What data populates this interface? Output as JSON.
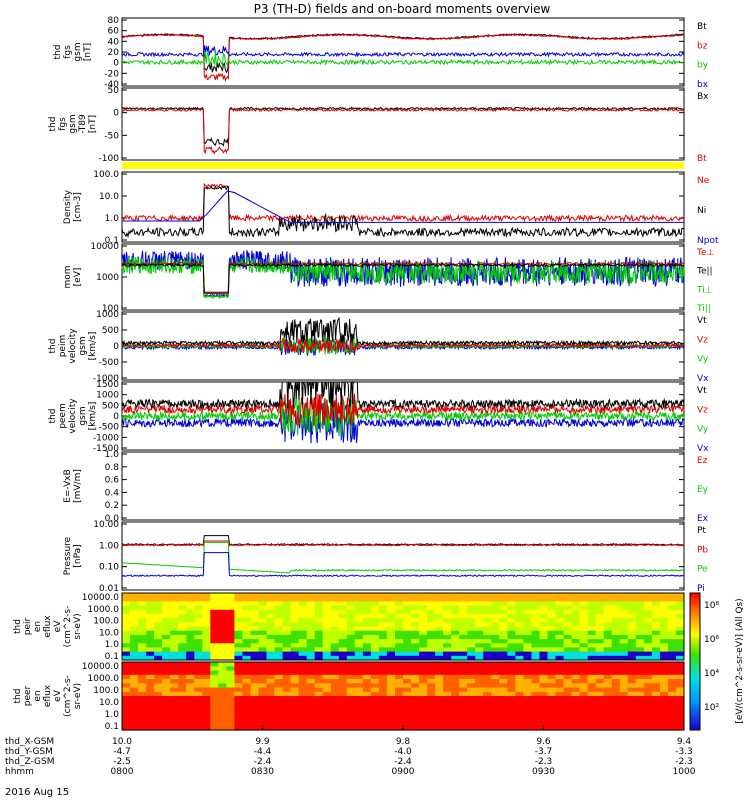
{
  "title": "P3 (TH-D) fields and on-board moments overview",
  "date_label": "2016 Aug 15",
  "chart_data": {
    "type": "line",
    "time_ticks": [
      "0800",
      "0830",
      "0900",
      "0930",
      "1000"
    ],
    "ephemeris": [
      {
        "label": "thd_X-GSM",
        "values": [
          "10.0",
          "9.9",
          "9.8",
          "9.6",
          "9.4"
        ]
      },
      {
        "label": "thd_Y-GSM",
        "values": [
          "-4.7",
          "-4.4",
          "-4.0",
          "-3.7",
          "-3.3"
        ]
      },
      {
        "label": "thd_Z-GSM",
        "values": [
          "-2.5",
          "-2.4",
          "-2.4",
          "-2.3",
          "-2.3"
        ]
      },
      {
        "label": "hhmm",
        "values": [
          "0800",
          "0830",
          "0900",
          "0930",
          "1000"
        ]
      }
    ],
    "panels": [
      {
        "id": "fgs",
        "ylabel": [
          "thd",
          "fgs",
          "gsm",
          "[nT]"
        ],
        "yticks": [
          "80",
          "60",
          "40",
          "20",
          "0",
          "-20",
          "-40"
        ],
        "ymin": -40,
        "ymax": 80,
        "log": false,
        "legend": [
          {
            "name": "Bt",
            "color": "#000000"
          },
          {
            "name": "bz",
            "color": "#e00000"
          },
          {
            "name": "by",
            "color": "#00cc00"
          },
          {
            "name": "bx",
            "color": "#0000dd"
          }
        ]
      },
      {
        "id": "fgs_delta",
        "ylabel": [
          "thd",
          "fgs",
          "gsm",
          "-T89",
          "[nT]"
        ],
        "yticks": [
          "50",
          "0",
          "-50",
          "-100"
        ],
        "ymin": -120,
        "ymax": 50,
        "log": false,
        "legend": [
          {
            "name": "Bx",
            "color": "#000000"
          },
          {
            "name": "Bt",
            "color": "#e00000"
          }
        ]
      },
      {
        "id": "density",
        "ylabel": [
          "Density",
          "[cm-3]"
        ],
        "yticks": [
          "100.0",
          "10.0",
          "1.0",
          "0.1"
        ],
        "ymin": 0.1,
        "ymax": 100,
        "log": true,
        "legend": [
          {
            "name": "Ne",
            "color": "#e00000"
          },
          {
            "name": "Ni",
            "color": "#000000"
          },
          {
            "name": "Npot",
            "color": "#0000dd"
          }
        ]
      },
      {
        "id": "temp",
        "ylabel": [
          "mom",
          "[eV]"
        ],
        "yticks": [
          "10000",
          "1000",
          "100"
        ],
        "ymin": 40,
        "ymax": 10000,
        "log": true,
        "legend": [
          {
            "name": "Te⊥",
            "color": "#e00000"
          },
          {
            "name": "Te||",
            "color": "#000000"
          },
          {
            "name": "Ti⊥",
            "color": "#00cc00"
          },
          {
            "name": "Ti||",
            "color": "#00cc00"
          }
        ]
      },
      {
        "id": "vi",
        "ylabel": [
          "thd",
          "peim",
          "velocity",
          "gsm",
          "[km/s]"
        ],
        "yticks": [
          "1000",
          "500",
          "0",
          "-500",
          "-1000"
        ],
        "ymin": -1000,
        "ymax": 1000,
        "log": false,
        "legend": [
          {
            "name": "Vt",
            "color": "#000000"
          },
          {
            "name": "Vz",
            "color": "#e00000"
          },
          {
            "name": "Vy",
            "color": "#00cc00"
          },
          {
            "name": "Vx",
            "color": "#0000dd"
          }
        ]
      },
      {
        "id": "ve",
        "ylabel": [
          "thd",
          "peem",
          "velocity",
          "gsm",
          "[km/s]"
        ],
        "yticks": [
          "1500",
          "1000",
          "500",
          "0",
          "-500",
          "-1000",
          "-1500"
        ],
        "ymin": -1500,
        "ymax": 1500,
        "log": false,
        "legend": [
          {
            "name": "Vt",
            "color": "#000000"
          },
          {
            "name": "Vz",
            "color": "#e00000"
          },
          {
            "name": "Vy",
            "color": "#00cc00"
          },
          {
            "name": "Vx",
            "color": "#0000dd"
          }
        ]
      },
      {
        "id": "efield",
        "ylabel": [
          "E=-VxB",
          "[mV/m]"
        ],
        "yticks": [
          "1.0",
          "0.8",
          "0.6",
          "0.4",
          "0.2",
          "0.0"
        ],
        "ymin": 0,
        "ymax": 1,
        "log": false,
        "legend": [
          {
            "name": "Ez",
            "color": "#e00000"
          },
          {
            "name": "Ey",
            "color": "#00cc00"
          },
          {
            "name": "Ex",
            "color": "#0000dd"
          }
        ]
      },
      {
        "id": "pressure",
        "ylabel": [
          "Pressure",
          "[nPa]"
        ],
        "yticks": [
          "10.00",
          "1.00",
          "0.10",
          "0.01"
        ],
        "ymin": 0.01,
        "ymax": 10,
        "log": true,
        "legend": [
          {
            "name": "Pt",
            "color": "#000000"
          },
          {
            "name": "Pb",
            "color": "#e00000"
          },
          {
            "name": "Pe",
            "color": "#00cc00"
          },
          {
            "name": "Pi",
            "color": "#0000dd"
          }
        ]
      }
    ],
    "spectrograms": [
      {
        "id": "peir",
        "ylabel": [
          "thd",
          "peir",
          "en",
          "eflux",
          "eV",
          "(cm^2-s-",
          "sr-eV)"
        ],
        "yticks": [
          "10000.0",
          "1000.0",
          "100.0",
          "10.0",
          "1.0",
          "0.1"
        ]
      },
      {
        "id": "peer",
        "ylabel": [
          "thd",
          "peer",
          "en",
          "eflux",
          "eV",
          "(cm^2-s-",
          "sr-eV)"
        ],
        "yticks": [
          "10000.0",
          "1000.0",
          "100.0",
          "10.0",
          "1.0",
          "0.1"
        ]
      }
    ],
    "colorbar": {
      "ticks": [
        "10⁸",
        "10⁶",
        "10⁴",
        "10²"
      ],
      "label": "[eV/(cm^2-s-sr-eV)] (All Qs)"
    },
    "colors": {
      "black": "#000000",
      "red": "#e00000",
      "green": "#00cc00",
      "blue": "#0000dd",
      "yellow": "#ffff00"
    }
  }
}
